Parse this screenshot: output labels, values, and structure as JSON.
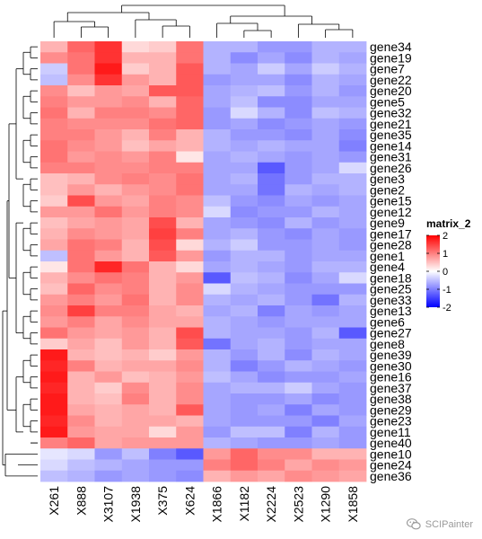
{
  "chart_data": {
    "type": "heatmap",
    "legend_title": "matrix_2",
    "legend_ticks": [
      2,
      1,
      0,
      -1,
      -2
    ],
    "legend_range": [
      -2,
      2
    ],
    "colors": {
      "low": "#0000ff",
      "mid": "#ffffff",
      "high": "#ff0000"
    },
    "columns": [
      "X261",
      "X888",
      "X3107",
      "X1938",
      "X375",
      "X624",
      "X1866",
      "X1182",
      "X2224",
      "X2523",
      "X1290",
      "X1858"
    ],
    "rows": [
      "gene34",
      "gene19",
      "gene7",
      "gene22",
      "gene20",
      "gene5",
      "gene32",
      "gene21",
      "gene35",
      "gene14",
      "gene31",
      "gene26",
      "gene3",
      "gene2",
      "gene15",
      "gene12",
      "gene9",
      "gene17",
      "gene28",
      "gene1",
      "gene4",
      "gene18",
      "gene25",
      "gene33",
      "gene13",
      "gene6",
      "gene27",
      "gene8",
      "gene39",
      "gene30",
      "gene16",
      "gene37",
      "gene38",
      "gene29",
      "gene23",
      "gene11",
      "gene40",
      "gene10",
      "gene24",
      "gene36"
    ],
    "values": [
      [
        0.6,
        1.2,
        1.6,
        0.3,
        0.4,
        1.1,
        -0.6,
        -0.6,
        -0.8,
        -0.8,
        -0.6,
        -0.6
      ],
      [
        0.9,
        1.1,
        1.6,
        0.6,
        0.6,
        1.1,
        -0.6,
        -0.9,
        -0.7,
        -0.9,
        -0.6,
        -0.7
      ],
      [
        -0.4,
        1.1,
        1.8,
        0.4,
        0.6,
        1.3,
        -0.6,
        -0.7,
        -0.4,
        -0.7,
        -0.4,
        -0.6
      ],
      [
        -0.5,
        0.9,
        1.6,
        0.8,
        0.6,
        1.3,
        -0.8,
        -0.7,
        -0.7,
        -0.9,
        -0.6,
        -0.7
      ],
      [
        0.9,
        0.5,
        0.8,
        0.7,
        1.3,
        1.3,
        -0.7,
        -0.6,
        -0.5,
        -0.8,
        -0.6,
        -0.8
      ],
      [
        1.0,
        0.8,
        0.8,
        0.9,
        0.6,
        1.2,
        -0.7,
        -0.5,
        -0.9,
        -0.9,
        -0.7,
        -0.7
      ],
      [
        1.1,
        0.6,
        1.0,
        1.0,
        0.9,
        1.2,
        -0.8,
        -0.3,
        -0.6,
        -0.9,
        -0.5,
        -0.6
      ],
      [
        1.0,
        0.9,
        0.9,
        0.9,
        1.1,
        1.2,
        -0.8,
        -0.7,
        -0.9,
        -0.8,
        -0.7,
        -0.8
      ],
      [
        1.0,
        1.0,
        0.8,
        0.6,
        1.0,
        0.6,
        -0.6,
        -0.8,
        -0.8,
        -0.9,
        -0.7,
        -0.9
      ],
      [
        1.1,
        0.9,
        0.8,
        0.5,
        0.7,
        0.6,
        -0.6,
        -0.7,
        -0.6,
        -0.7,
        -0.7,
        -1.0
      ],
      [
        1.1,
        0.8,
        0.9,
        0.8,
        1.0,
        0.2,
        -0.7,
        -0.6,
        -0.7,
        -0.8,
        -0.7,
        -0.8
      ],
      [
        1.0,
        1.0,
        0.9,
        0.9,
        1.0,
        1.0,
        -0.7,
        -0.7,
        -1.3,
        -0.8,
        -0.7,
        -0.3
      ],
      [
        0.5,
        0.6,
        0.9,
        1.0,
        0.9,
        1.1,
        -0.7,
        -0.6,
        -1.1,
        -0.8,
        -0.6,
        -0.6
      ],
      [
        0.5,
        0.8,
        0.6,
        0.8,
        0.9,
        1.1,
        -0.7,
        -0.7,
        -1.1,
        -0.6,
        -0.7,
        -0.6
      ],
      [
        0.4,
        1.4,
        0.8,
        0.7,
        1.0,
        0.9,
        -0.5,
        -0.8,
        -0.9,
        -0.7,
        -0.8,
        -0.7
      ],
      [
        0.8,
        0.8,
        1.1,
        0.8,
        1.0,
        0.9,
        -0.3,
        -0.9,
        -0.8,
        -0.8,
        -0.6,
        -0.7
      ],
      [
        0.5,
        0.7,
        0.8,
        0.7,
        1.4,
        0.6,
        -0.7,
        -0.8,
        -0.9,
        -0.6,
        -0.8,
        -0.7
      ],
      [
        0.6,
        0.9,
        0.8,
        0.7,
        1.5,
        1.0,
        -0.7,
        -0.6,
        -0.8,
        -0.9,
        -0.7,
        -0.8
      ],
      [
        0.7,
        1.1,
        1.0,
        0.6,
        1.4,
        0.3,
        -0.6,
        -0.4,
        -0.8,
        -0.8,
        -0.7,
        -0.8
      ],
      [
        -0.5,
        1.1,
        0.8,
        0.6,
        1.3,
        0.8,
        -0.8,
        -0.6,
        -0.6,
        -0.8,
        -0.7,
        -0.7
      ],
      [
        0.2,
        1.1,
        1.7,
        1.1,
        0.6,
        0.3,
        -0.7,
        -0.6,
        -0.7,
        -0.8,
        -0.6,
        -0.6
      ],
      [
        0.6,
        0.9,
        1.1,
        1.0,
        0.6,
        0.8,
        -1.3,
        -0.5,
        -0.6,
        -0.9,
        -0.7,
        -0.3
      ],
      [
        0.5,
        1.2,
        0.9,
        1.0,
        0.6,
        0.9,
        -0.3,
        -0.6,
        -0.7,
        -0.8,
        -0.8,
        -0.8
      ],
      [
        0.8,
        1.0,
        0.8,
        1.1,
        0.6,
        0.9,
        -0.6,
        -0.7,
        -0.6,
        -0.8,
        -1.1,
        -0.6
      ],
      [
        0.9,
        1.5,
        1.0,
        1.0,
        0.7,
        0.6,
        -0.7,
        -0.6,
        -1.0,
        -0.7,
        -0.8,
        -0.7
      ],
      [
        0.8,
        1.0,
        0.7,
        0.9,
        0.7,
        0.7,
        -0.6,
        -0.7,
        -0.8,
        -0.7,
        -0.7,
        -0.7
      ],
      [
        1.1,
        0.8,
        0.7,
        0.8,
        0.6,
        1.4,
        -0.6,
        -0.7,
        -0.7,
        -0.8,
        -0.6,
        -1.3
      ],
      [
        0.4,
        0.7,
        0.5,
        0.8,
        0.6,
        1.3,
        -1.1,
        -0.7,
        -0.6,
        -0.8,
        -0.7,
        -0.7
      ],
      [
        1.8,
        0.6,
        0.5,
        0.6,
        0.4,
        0.8,
        -0.6,
        -0.8,
        -0.6,
        -0.9,
        -0.6,
        -0.7
      ],
      [
        1.7,
        1.0,
        0.6,
        0.7,
        0.7,
        0.9,
        -0.6,
        -1.0,
        -0.8,
        -0.6,
        -0.7,
        -0.8
      ],
      [
        1.8,
        0.6,
        0.8,
        0.5,
        0.6,
        0.8,
        -0.5,
        -0.7,
        -0.9,
        -0.8,
        -0.8,
        -0.7
      ],
      [
        1.7,
        0.6,
        0.4,
        0.9,
        0.6,
        0.9,
        -0.7,
        -0.6,
        -0.6,
        -0.4,
        -0.7,
        -0.8
      ],
      [
        1.8,
        0.6,
        0.5,
        1.0,
        0.6,
        0.9,
        -0.7,
        -0.8,
        -0.8,
        -0.7,
        -0.9,
        -0.8
      ],
      [
        1.8,
        0.7,
        0.6,
        0.7,
        0.6,
        1.3,
        -0.7,
        -0.8,
        -0.7,
        -1.0,
        -0.7,
        -0.8
      ],
      [
        1.7,
        0.9,
        0.6,
        0.7,
        0.7,
        0.6,
        -0.7,
        -0.8,
        -0.8,
        -0.8,
        -1.0,
        -0.7
      ],
      [
        1.8,
        0.8,
        0.7,
        0.7,
        0.3,
        0.8,
        -0.8,
        -0.5,
        -0.5,
        -1.0,
        -0.6,
        -0.8
      ],
      [
        1.0,
        1.2,
        0.7,
        0.8,
        0.8,
        0.8,
        -0.6,
        -0.7,
        -0.8,
        -0.8,
        -0.7,
        -0.8
      ],
      [
        -0.2,
        -0.3,
        -0.8,
        -0.5,
        -1.0,
        -1.3,
        0.8,
        1.2,
        0.9,
        0.9,
        0.6,
        0.6
      ],
      [
        -0.3,
        -0.5,
        -0.6,
        -0.7,
        -0.8,
        -0.8,
        1.0,
        1.2,
        1.0,
        0.7,
        0.9,
        0.8
      ],
      [
        -0.5,
        -0.6,
        -0.8,
        -0.7,
        -0.8,
        -0.9,
        0.6,
        0.8,
        0.7,
        0.9,
        0.8,
        0.7
      ]
    ]
  },
  "watermark": {
    "text": "SCIPainter",
    "icon": "wechat-icon"
  }
}
